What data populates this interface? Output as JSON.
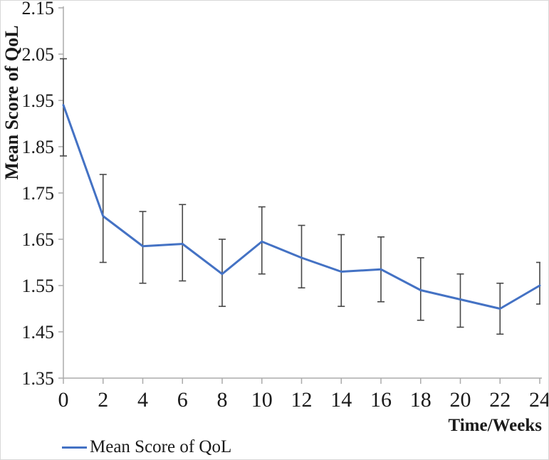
{
  "chart_data": {
    "type": "line",
    "title": "",
    "xlabel": "Time/Weeks",
    "ylabel": "Mean Score of QoL",
    "xlim": [
      0,
      24
    ],
    "ylim": [
      1.35,
      2.15
    ],
    "xticks": [
      0,
      2,
      4,
      6,
      8,
      10,
      12,
      14,
      16,
      18,
      20,
      22,
      24
    ],
    "yticks": [
      "1.35",
      "1.45",
      "1.55",
      "1.65",
      "1.75",
      "1.85",
      "1.95",
      "2.05",
      "2.15"
    ],
    "grid": false,
    "x": [
      0,
      2,
      4,
      6,
      8,
      10,
      12,
      14,
      16,
      18,
      20,
      22,
      24
    ],
    "series": [
      {
        "name": "Mean Score of QoL",
        "values": [
          1.94,
          1.7,
          1.635,
          1.64,
          1.575,
          1.645,
          1.61,
          1.58,
          1.585,
          1.54,
          1.52,
          1.5,
          1.55
        ],
        "error_upper": [
          2.04,
          1.79,
          1.71,
          1.725,
          1.65,
          1.72,
          1.68,
          1.66,
          1.655,
          1.61,
          1.575,
          1.555,
          1.6
        ],
        "error_lower": [
          1.83,
          1.6,
          1.555,
          1.56,
          1.505,
          1.575,
          1.545,
          1.505,
          1.515,
          1.475,
          1.46,
          1.445,
          1.51
        ],
        "color": "#4472C4"
      }
    ],
    "legend": {
      "position": "bottom-left",
      "entries": [
        "Mean Score of QoL"
      ]
    },
    "style": {
      "line_width": 3,
      "error_bar_color": "#474747",
      "axis_color": "#ababab",
      "tick_label_color": "#1a1a1a"
    }
  }
}
